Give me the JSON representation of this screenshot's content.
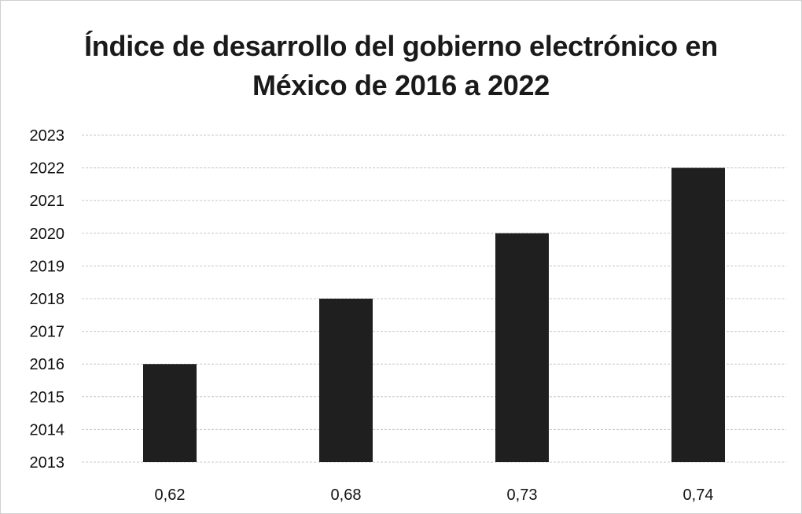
{
  "chart_data": {
    "type": "bar",
    "title_line1": "Índice de desarrollo del gobierno electrónico en",
    "title_line2": "México de 2016 a 2022",
    "categories": [
      "0,62",
      "0,68",
      "0,73",
      "0,74"
    ],
    "values": [
      2016,
      2018,
      2020,
      2022
    ],
    "xlabel": "",
    "ylabel": "",
    "ylim": [
      2013,
      2023
    ],
    "yticks": [
      2023,
      2022,
      2021,
      2020,
      2019,
      2018,
      2017,
      2016,
      2015,
      2014,
      2013
    ],
    "grid": true,
    "legend": "none",
    "bar_color": "#1f1f1f",
    "grid_color": "#c8c8c8"
  }
}
